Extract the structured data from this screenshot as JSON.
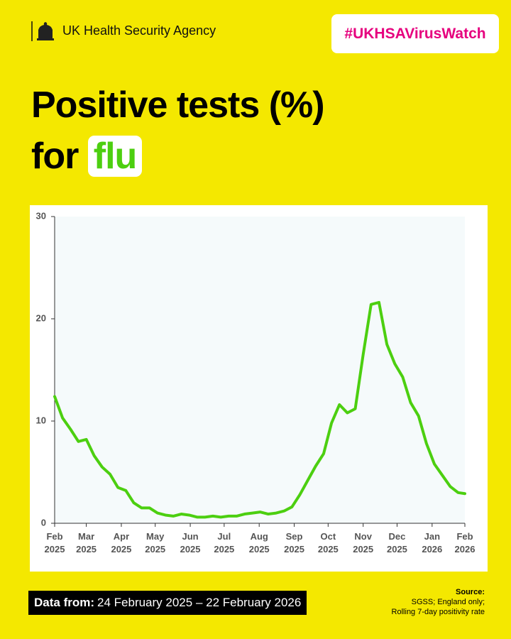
{
  "header": {
    "agency": "UK Health Security Agency",
    "hashtag": "#UKHSAVirusWatch"
  },
  "headline": {
    "line1": "Positive tests (%)",
    "line2": "for",
    "highlight": "flu"
  },
  "chart_data": {
    "type": "line",
    "x": [
      "2025-02-24",
      "2025-03-03",
      "2025-03-10",
      "2025-03-17",
      "2025-03-24",
      "2025-03-31",
      "2025-04-07",
      "2025-04-14",
      "2025-04-21",
      "2025-04-28",
      "2025-05-05",
      "2025-05-12",
      "2025-05-19",
      "2025-05-26",
      "2025-06-02",
      "2025-06-09",
      "2025-06-16",
      "2025-06-23",
      "2025-06-30",
      "2025-07-07",
      "2025-07-14",
      "2025-07-21",
      "2025-07-28",
      "2025-08-04",
      "2025-08-11",
      "2025-08-18",
      "2025-08-25",
      "2025-09-01",
      "2025-09-08",
      "2025-09-15",
      "2025-09-22",
      "2025-09-29",
      "2025-10-06",
      "2025-10-13",
      "2025-10-20",
      "2025-10-27",
      "2025-11-03",
      "2025-11-10",
      "2025-11-17",
      "2025-11-24",
      "2025-12-01",
      "2025-12-08",
      "2025-12-15",
      "2025-12-22",
      "2025-12-29",
      "2026-01-05",
      "2026-01-12",
      "2026-01-19",
      "2026-01-26",
      "2026-02-02",
      "2026-02-09",
      "2026-02-16",
      "2026-02-22"
    ],
    "series": [
      {
        "name": "flu",
        "color": "#4ccf10",
        "values": [
          12.4,
          10.3,
          9.2,
          8.0,
          8.2,
          6.6,
          5.5,
          4.8,
          3.5,
          3.2,
          2.0,
          1.5,
          1.5,
          1.0,
          0.8,
          0.7,
          0.9,
          0.8,
          0.6,
          0.6,
          0.7,
          0.6,
          0.7,
          0.7,
          0.9,
          1.0,
          1.1,
          0.9,
          1.0,
          1.2,
          1.6,
          2.8,
          4.2,
          5.6,
          6.8,
          9.8,
          11.6,
          10.8,
          11.2,
          16.5,
          21.4,
          21.6,
          17.5,
          15.6,
          14.3,
          11.8,
          10.5,
          7.8,
          5.8,
          4.7,
          3.6,
          3.0,
          2.9
        ]
      }
    ],
    "xlim": [
      "2025-02-24",
      "2026-02-22"
    ],
    "xticks": [
      {
        "value": "2025-02-24",
        "label": "Feb 2025"
      },
      {
        "value": "2025-03-24",
        "label": "Mar 2025"
      },
      {
        "value": "2025-04-24",
        "label": "Apr 2025"
      },
      {
        "value": "2025-05-24",
        "label": "May 2025"
      },
      {
        "value": "2025-06-24",
        "label": "Jun 2025"
      },
      {
        "value": "2025-07-24",
        "label": "Jul 2025"
      },
      {
        "value": "2025-08-24",
        "label": "Aug 2025"
      },
      {
        "value": "2025-09-24",
        "label": "Sep 2025"
      },
      {
        "value": "2025-10-24",
        "label": "Oct 2025"
      },
      {
        "value": "2025-11-24",
        "label": "Nov 2025"
      },
      {
        "value": "2025-12-24",
        "label": "Dec 2025"
      },
      {
        "value": "2026-01-24",
        "label": "Jan 2026"
      },
      {
        "value": "2026-02-22",
        "label": "Feb 2026"
      }
    ],
    "ylim": [
      0,
      30
    ],
    "yticks": [
      0,
      10,
      20,
      30
    ]
  },
  "footer": {
    "data_from_label": "Data from:",
    "data_from_range": "24 February 2025 – 22 February 2026",
    "source_label": "Source:",
    "source_lines": [
      "SGSS; England only;",
      "Rolling 7-day positivity rate"
    ]
  }
}
